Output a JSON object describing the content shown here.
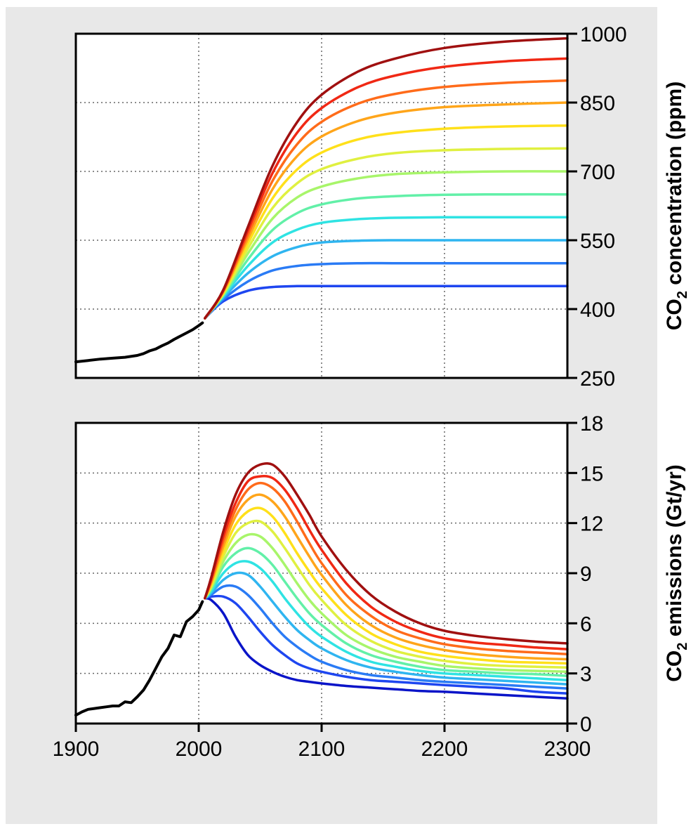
{
  "colors": {
    "background": "#e8e8e8",
    "plot_background": "#ffffff",
    "historical": "#000000",
    "scenarios": [
      "#0a14c8",
      "#1e46f0",
      "#2a7bf5",
      "#2fb5f0",
      "#2fe3e3",
      "#62f0a8",
      "#a8f56a",
      "#e0f040",
      "#ffe01a",
      "#ffa51a",
      "#ff6b1a",
      "#f02814",
      "#a01010"
    ]
  },
  "chart_data": [
    {
      "type": "line",
      "title": "",
      "xlabel": "",
      "ylabel": "CO",
      "ylabel_sub": "2",
      "ylabel_rest": " concentration (ppm)",
      "xlim": [
        1900,
        2300
      ],
      "ylim": [
        250,
        1000
      ],
      "yticks": [
        250,
        400,
        550,
        700,
        850,
        1000
      ],
      "ytick_labels": [
        "250",
        "400",
        "550",
        "700",
        "850",
        "1000"
      ],
      "grid": true,
      "y_axis_side": "right",
      "historical": {
        "x": [
          1900,
          1910,
          1920,
          1930,
          1940,
          1950,
          1955,
          1960,
          1965,
          1970,
          1975,
          1980,
          1985,
          1990,
          1995,
          2000,
          2003
        ],
        "y": [
          285,
          288,
          291,
          293,
          295,
          299,
          303,
          309,
          313,
          320,
          326,
          334,
          341,
          348,
          355,
          364,
          370
        ]
      },
      "scenarios_x": [
        2005,
        2020,
        2040,
        2060,
        2080,
        2100,
        2130,
        2160,
        2200,
        2250,
        2300
      ],
      "series": [
        {
          "values": [
            380,
            417,
            440,
            448,
            450,
            450,
            450,
            450,
            450,
            450,
            450
          ]
        },
        {
          "values": [
            380,
            421,
            460,
            484,
            494,
            498,
            500,
            500,
            500,
            500,
            500
          ]
        },
        {
          "values": [
            380,
            425,
            478,
            515,
            535,
            545,
            549,
            550,
            550,
            550,
            550
          ]
        },
        {
          "values": [
            380,
            428,
            494,
            545,
            573,
            588,
            596,
            599,
            600,
            600,
            600
          ]
        },
        {
          "values": [
            380,
            430,
            508,
            572,
            609,
            628,
            641,
            646,
            649,
            650,
            650
          ]
        },
        {
          "values": [
            380,
            432,
            521,
            597,
            643,
            667,
            685,
            694,
            698,
            700,
            700
          ]
        },
        {
          "values": [
            380,
            434,
            532,
            620,
            674,
            705,
            728,
            740,
            746,
            749,
            750
          ]
        },
        {
          "values": [
            380,
            436,
            543,
            641,
            704,
            741,
            770,
            784,
            793,
            798,
            800
          ]
        },
        {
          "values": [
            380,
            438,
            553,
            661,
            733,
            776,
            810,
            828,
            840,
            846,
            850
          ]
        },
        {
          "values": [
            380,
            439,
            562,
            679,
            759,
            808,
            848,
            869,
            884,
            893,
            898
          ]
        },
        {
          "values": [
            380,
            441,
            571,
            696,
            784,
            838,
            884,
            909,
            928,
            940,
            946
          ]
        },
        {
          "values": [
            380,
            442,
            579,
            712,
            807,
            867,
            918,
            946,
            969,
            983,
            990
          ]
        }
      ]
    },
    {
      "type": "line",
      "title": "",
      "xlabel": "",
      "ylabel": "CO",
      "ylabel_sub": "2",
      "ylabel_rest": " emissions (Gt/yr)",
      "xlim": [
        1900,
        2300
      ],
      "ylim": [
        0,
        18
      ],
      "yticks": [
        0,
        3,
        6,
        9,
        12,
        15,
        18
      ],
      "ytick_labels": [
        "0",
        "3",
        "6",
        "9",
        "12",
        "15",
        "18"
      ],
      "xticks": [
        1900,
        2000,
        2100,
        2200,
        2300
      ],
      "xtick_labels": [
        "1900",
        "2000",
        "2100",
        "2200",
        "2300"
      ],
      "grid": true,
      "y_axis_side": "right",
      "historical": {
        "x": [
          1900,
          1905,
          1910,
          1915,
          1920,
          1925,
          1930,
          1935,
          1940,
          1945,
          1950,
          1955,
          1960,
          1965,
          1970,
          1975,
          1980,
          1985,
          1990,
          1995,
          2000,
          2003
        ],
        "y": [
          0.5,
          0.7,
          0.85,
          0.9,
          0.95,
          1.0,
          1.05,
          1.05,
          1.3,
          1.25,
          1.6,
          2.0,
          2.6,
          3.3,
          4.0,
          4.5,
          5.3,
          5.2,
          6.1,
          6.4,
          6.8,
          7.3
        ]
      },
      "scenarios_x": [
        2005,
        2010,
        2020,
        2030,
        2040,
        2050,
        2060,
        2070,
        2080,
        2090,
        2100,
        2120,
        2140,
        2160,
        2180,
        2200,
        2225,
        2250,
        2275,
        2300
      ],
      "series": [
        {
          "values": [
            7.5,
            7.4,
            6.6,
            5.2,
            4.1,
            3.5,
            3.1,
            2.8,
            2.6,
            2.5,
            2.4,
            2.25,
            2.15,
            2.05,
            1.95,
            1.9,
            1.8,
            1.7,
            1.6,
            1.5
          ]
        },
        {
          "values": [
            7.5,
            7.6,
            7.6,
            7.2,
            6.4,
            5.5,
            4.7,
            4.1,
            3.6,
            3.3,
            3.1,
            2.8,
            2.6,
            2.5,
            2.4,
            2.3,
            2.2,
            2.1,
            1.9,
            1.8
          ]
        },
        {
          "values": [
            7.5,
            7.7,
            8.2,
            8.2,
            7.7,
            6.9,
            6.0,
            5.2,
            4.6,
            4.1,
            3.7,
            3.2,
            2.9,
            2.75,
            2.6,
            2.5,
            2.4,
            2.3,
            2.2,
            2.1
          ]
        },
        {
          "values": [
            7.5,
            7.8,
            8.6,
            9.0,
            8.9,
            8.2,
            7.3,
            6.4,
            5.6,
            5.0,
            4.5,
            3.8,
            3.35,
            3.1,
            2.9,
            2.75,
            2.65,
            2.55,
            2.45,
            2.35
          ]
        },
        {
          "values": [
            7.5,
            7.9,
            9.0,
            9.6,
            9.7,
            9.3,
            8.5,
            7.5,
            6.6,
            5.8,
            5.2,
            4.3,
            3.7,
            3.4,
            3.15,
            3.0,
            2.9,
            2.8,
            2.7,
            2.6
          ]
        },
        {
          "values": [
            7.5,
            8.0,
            9.4,
            10.2,
            10.5,
            10.2,
            9.5,
            8.5,
            7.5,
            6.6,
            5.9,
            4.8,
            4.1,
            3.7,
            3.4,
            3.2,
            3.1,
            3.0,
            2.95,
            2.85
          ]
        },
        {
          "values": [
            7.5,
            8.1,
            9.7,
            10.8,
            11.3,
            11.2,
            10.5,
            9.5,
            8.4,
            7.4,
            6.6,
            5.3,
            4.5,
            4.0,
            3.7,
            3.45,
            3.3,
            3.2,
            3.15,
            3.1
          ]
        },
        {
          "values": [
            7.5,
            8.2,
            10.0,
            11.4,
            12.0,
            12.1,
            11.5,
            10.5,
            9.4,
            8.3,
            7.4,
            5.9,
            4.95,
            4.35,
            4.0,
            3.75,
            3.55,
            3.45,
            3.4,
            3.35
          ]
        },
        {
          "values": [
            7.5,
            8.3,
            10.3,
            11.9,
            12.7,
            12.9,
            12.4,
            11.4,
            10.2,
            9.1,
            8.1,
            6.5,
            5.4,
            4.75,
            4.3,
            4.05,
            3.85,
            3.7,
            3.65,
            3.6
          ]
        },
        {
          "values": [
            7.5,
            8.4,
            10.6,
            12.4,
            13.4,
            13.7,
            13.3,
            12.4,
            11.2,
            10.0,
            8.9,
            7.1,
            5.9,
            5.15,
            4.7,
            4.4,
            4.15,
            4.0,
            3.9,
            3.85
          ]
        },
        {
          "values": [
            7.5,
            8.5,
            10.9,
            12.8,
            14.0,
            14.4,
            14.1,
            13.3,
            12.1,
            10.8,
            9.6,
            7.7,
            6.45,
            5.6,
            5.1,
            4.75,
            4.5,
            4.35,
            4.25,
            4.15
          ]
        },
        {
          "values": [
            7.5,
            8.6,
            11.2,
            13.2,
            14.5,
            14.8,
            14.7,
            14.0,
            12.9,
            11.6,
            10.4,
            8.4,
            7.0,
            6.1,
            5.5,
            5.1,
            4.85,
            4.7,
            4.55,
            4.45
          ]
        },
        {
          "values": [
            7.5,
            8.7,
            11.5,
            13.7,
            15.0,
            15.5,
            15.5,
            14.8,
            13.7,
            12.5,
            11.2,
            9.2,
            7.7,
            6.7,
            6.0,
            5.55,
            5.25,
            5.05,
            4.9,
            4.8
          ]
        }
      ]
    }
  ]
}
